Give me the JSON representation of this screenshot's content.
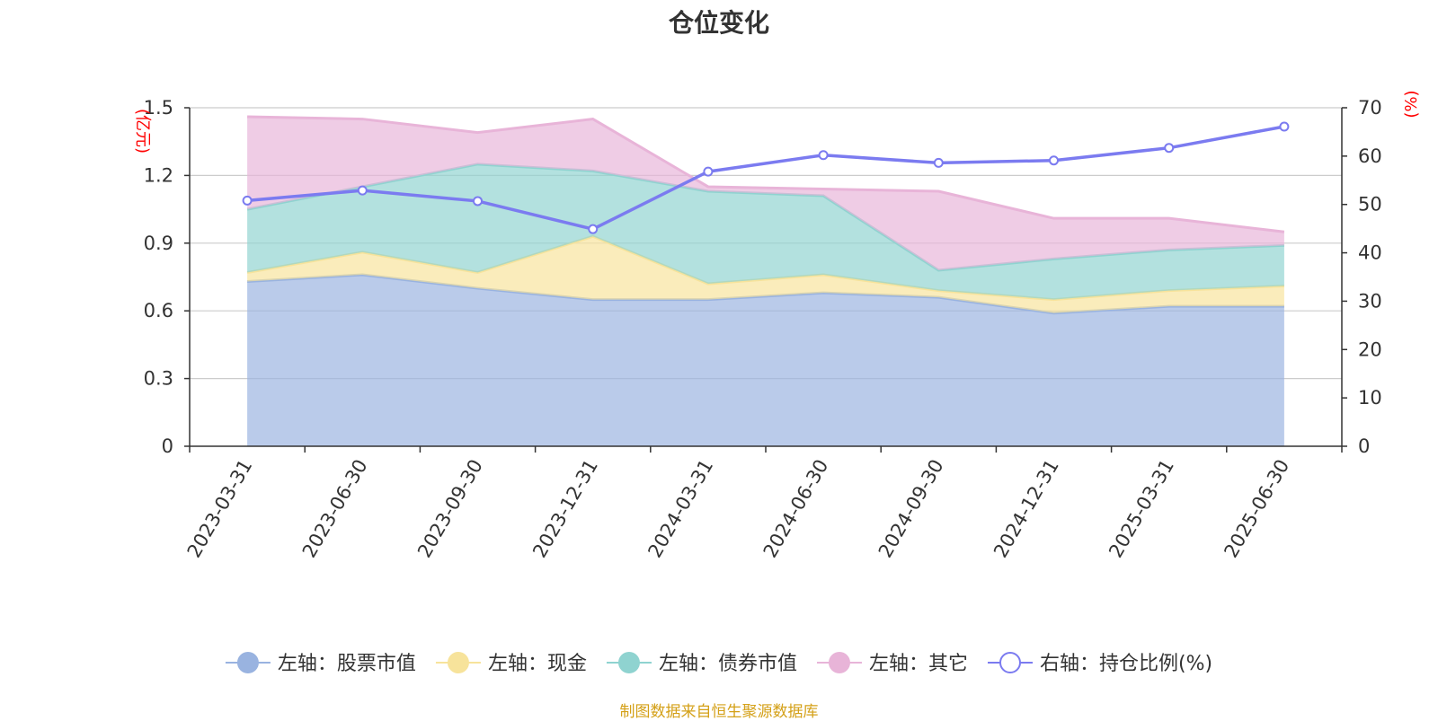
{
  "source_note": "制图数据来自恒生聚源数据库",
  "colors": {
    "stock": "#99b3e0",
    "cash": "#f7e39b",
    "bond": "#8fd3d0",
    "other": "#e8b4d8",
    "ratio": "#7b7bf0",
    "grid": "#cccccc",
    "axis": "#333333",
    "unit": "#ff0000"
  },
  "chart_data": {
    "type": "area",
    "title": "仓位变化",
    "categories": [
      "2023-03-31",
      "2023-06-30",
      "2023-09-30",
      "2023-12-31",
      "2024-03-31",
      "2024-06-30",
      "2024-09-30",
      "2024-12-31",
      "2025-03-31",
      "2025-06-30"
    ],
    "left_axis": {
      "unit": "(亿元)",
      "ylim": [
        0,
        1.5
      ],
      "ticks": [
        "0",
        "0.3",
        "0.6",
        "0.9",
        "1.2",
        "1.5"
      ]
    },
    "right_axis": {
      "unit": "(%)",
      "ylim": [
        0,
        70
      ],
      "ticks": [
        "0",
        "10",
        "20",
        "30",
        "40",
        "50",
        "60",
        "70"
      ]
    },
    "stacked": true,
    "grid": true,
    "legend_position": "bottom",
    "series": [
      {
        "name": "左轴：股票市值",
        "axis": "left",
        "type": "area",
        "color_key": "stock",
        "values": [
          0.73,
          0.76,
          0.7,
          0.65,
          0.65,
          0.68,
          0.66,
          0.59,
          0.62,
          0.62
        ]
      },
      {
        "name": "左轴：现金",
        "axis": "left",
        "type": "area",
        "color_key": "cash",
        "values": [
          0.04,
          0.1,
          0.07,
          0.28,
          0.07,
          0.08,
          0.03,
          0.06,
          0.07,
          0.09
        ]
      },
      {
        "name": "左轴：债券市值",
        "axis": "left",
        "type": "area",
        "color_key": "bond",
        "values": [
          0.28,
          0.29,
          0.48,
          0.29,
          0.41,
          0.35,
          0.09,
          0.18,
          0.18,
          0.18
        ]
      },
      {
        "name": "左轴：其它",
        "axis": "left",
        "type": "area",
        "color_key": "other",
        "values": [
          0.41,
          0.3,
          0.14,
          0.23,
          0.02,
          0.03,
          0.35,
          0.18,
          0.14,
          0.06
        ]
      },
      {
        "name": "右轴：持仓比例(%)",
        "axis": "right",
        "type": "line",
        "color_key": "ratio",
        "values": [
          50.8,
          52.9,
          50.7,
          44.9,
          56.8,
          60.2,
          58.6,
          59.1,
          61.7,
          66.1
        ]
      }
    ]
  }
}
